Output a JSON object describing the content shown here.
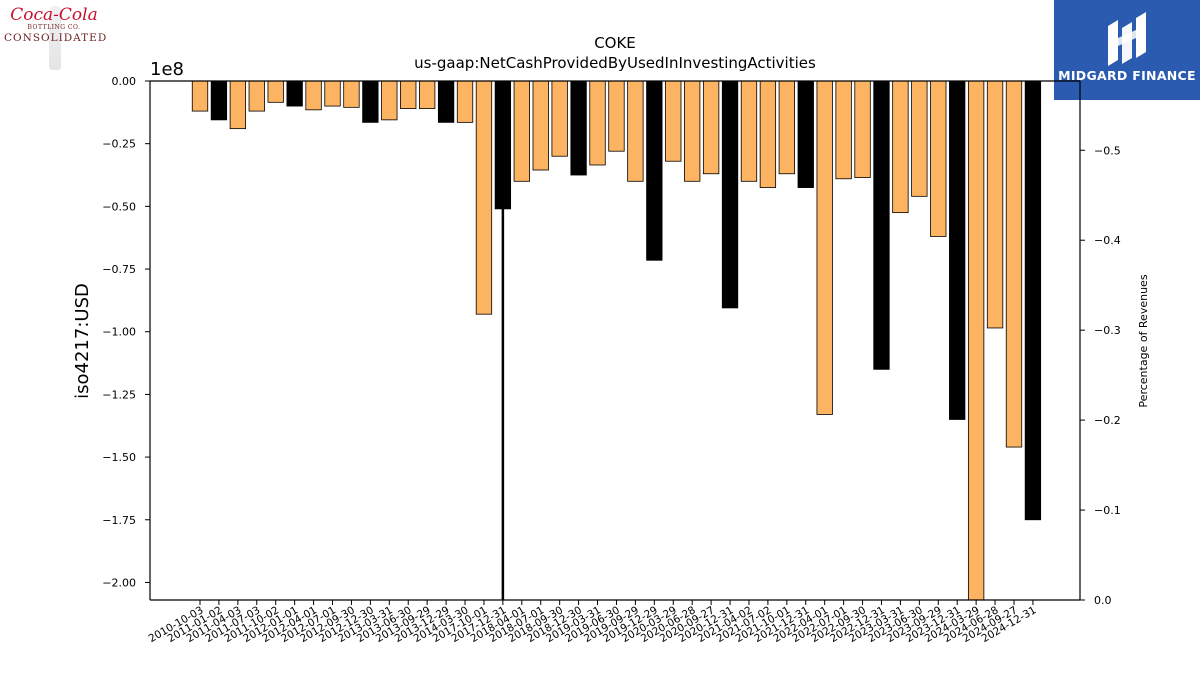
{
  "header": {
    "ticker": "COKE",
    "metric": "us-gaap:NetCashProvidedByUsedInInvestingActivities"
  },
  "logos": {
    "left_brand": "Coca-Cola",
    "left_sub": "BOTTLING CO.",
    "left_name": "CONSOLIDATED",
    "right_brand": "MIDGARD FINANCE"
  },
  "colors": {
    "primary_bar": "#fdb462",
    "highlight_bar": "#000000",
    "logo_right_bg": "#2a5bb0"
  },
  "chart_data": {
    "type": "bar",
    "title": "COKE\nus-gaap:NetCashProvidedByUsedInInvestingActivities",
    "ylabel": "iso4217:USD",
    "y2label": "Percentage of Revenues",
    "y_scale_label": "1e8",
    "ylim": [
      -2.07,
      0
    ],
    "y2lim": [
      0,
      -0.577
    ],
    "yticks": [
      0.0,
      -0.25,
      -0.5,
      -0.75,
      -1.0,
      -1.25,
      -1.5,
      -1.75,
      -2.0
    ],
    "ytick_labels": [
      "0.00",
      "−0.25",
      "−0.50",
      "−0.75",
      "−1.00",
      "−1.25",
      "−1.50",
      "−1.75",
      "−2.00"
    ],
    "y2ticks": [
      -0.5,
      -0.4,
      -0.3,
      -0.2,
      -0.1,
      0.0
    ],
    "y2tick_labels": [
      "−0.5",
      "−0.4",
      "−0.3",
      "−0.2",
      "−0.1",
      "0.0"
    ],
    "grid": false,
    "xtick_labels": [
      "2010-10-03",
      "2011-01-02",
      "2011-04-03",
      "2011-07-03",
      "2011-10-02",
      "2012-01-01",
      "2012-04-01",
      "2012-07-01",
      "2012-09-30",
      "2012-12-30",
      "2013-03-31",
      "2013-06-30",
      "2013-09-29",
      "2013-12-29",
      "2014-03-30",
      "2017-10-01",
      "2017-12-31",
      "2018-04-01",
      "2018-07-01",
      "2018-09-30",
      "2018-12-30",
      "2019-03-31",
      "2019-06-30",
      "2019-09-29",
      "2019-12-29",
      "2020-03-29",
      "2020-06-28",
      "2020-09-27",
      "2020-12-31",
      "2021-04-02",
      "2021-07-02",
      "2021-10-01",
      "2021-12-31",
      "2022-04-01",
      "2022-07-01",
      "2022-09-30",
      "2022-12-31",
      "2023-03-31",
      "2023-06-30",
      "2023-09-29",
      "2023-12-31",
      "2024-03-29",
      "2024-06-28",
      "2024-09-27",
      "2024-12-31"
    ],
    "values": [
      -0.12,
      -0.155,
      -0.19,
      -0.12,
      -0.085,
      -0.1,
      -0.115,
      -0.1,
      -0.105,
      -0.165,
      -0.155,
      -0.11,
      -0.11,
      -0.165,
      -0.165,
      -0.93,
      -0.51,
      -0.4,
      -0.355,
      -0.3,
      -0.375,
      -0.335,
      -0.28,
      -0.4,
      -0.715,
      -0.32,
      -0.4,
      -0.37,
      -0.905,
      -0.4,
      -0.425,
      -0.37,
      -0.425,
      -1.33,
      -0.39,
      -0.385,
      -1.15,
      -0.525,
      -0.46,
      -0.62,
      -1.35,
      -2.07,
      -0.985,
      -1.46,
      -1.75
    ],
    "highlight": [
      false,
      true,
      false,
      false,
      false,
      true,
      false,
      false,
      false,
      true,
      false,
      false,
      false,
      true,
      false,
      false,
      true,
      false,
      false,
      false,
      true,
      false,
      false,
      false,
      true,
      false,
      false,
      false,
      true,
      false,
      false,
      false,
      true,
      false,
      false,
      false,
      true,
      false,
      false,
      false,
      true,
      false,
      false,
      false,
      true
    ],
    "line": {
      "color": "#000000",
      "note": "thin vertical line at 2017-12-31 extending to axis bottom"
    }
  }
}
